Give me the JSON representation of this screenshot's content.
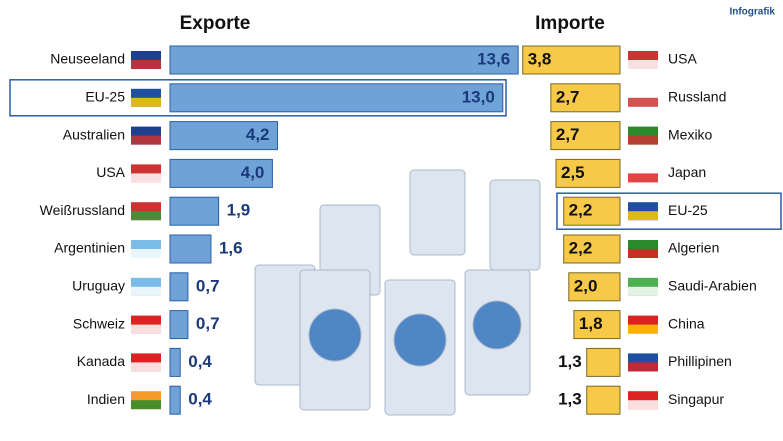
{
  "header": {
    "source_logo": "Infografik"
  },
  "chart_data": [
    {
      "type": "hbar",
      "title": "Exporte",
      "categories": [
        "Neuseeland",
        "EU-25",
        "Australien",
        "USA",
        "Weißrussland",
        "Argentinien",
        "Uruguay",
        "Schweiz",
        "Kanada",
        "Indien"
      ],
      "values": [
        13.6,
        13.0,
        4.2,
        4.0,
        1.9,
        1.6,
        0.7,
        0.7,
        0.4,
        0.4
      ],
      "value_labels": [
        "13,6",
        "13,0",
        "4,2",
        "4,0",
        "1,9",
        "1,6",
        "0,7",
        "0,7",
        "0,4",
        "0,4"
      ],
      "color": "#6fa3d8",
      "highlight": 1
    },
    {
      "type": "hbar-left",
      "title": "Importe",
      "categories": [
        "USA",
        "Russland",
        "Mexiko",
        "Japan",
        "EU-25",
        "Algerien",
        "Saudi-Arabien",
        "China",
        "Phillipinen",
        "Singapur"
      ],
      "values": [
        3.8,
        2.7,
        2.7,
        2.5,
        2.2,
        2.2,
        2.0,
        1.8,
        1.3,
        1.3
      ],
      "value_labels": [
        "3,8",
        "2,7",
        "2,7",
        "2,5",
        "2,2",
        "2,2",
        "2,0",
        "1,8",
        "1,3",
        "1,3"
      ],
      "color": "#f7c948",
      "highlight": 4
    }
  ]
}
